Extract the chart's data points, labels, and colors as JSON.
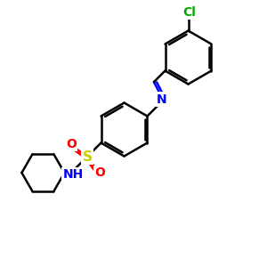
{
  "bg_color": "#ffffff",
  "atom_colors": {
    "N": "#0000ff",
    "O": "#ff0000",
    "S": "#cccc00",
    "Cl": "#00aa00",
    "C": "#000000"
  },
  "lw": 1.8,
  "lw_double_inner": 1.5,
  "figsize": [
    3.0,
    3.0
  ],
  "dpi": 100,
  "xlim": [
    0,
    10
  ],
  "ylim": [
    0,
    10
  ],
  "font_size": 10
}
